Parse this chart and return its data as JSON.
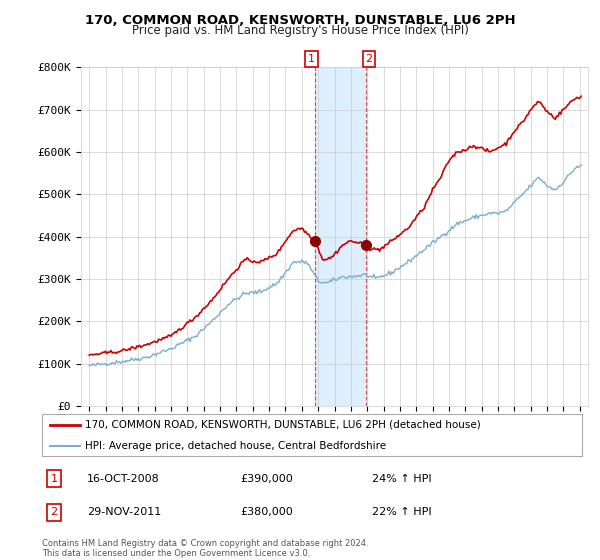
{
  "title": "170, COMMON ROAD, KENSWORTH, DUNSTABLE, LU6 2PH",
  "subtitle": "Price paid vs. HM Land Registry's House Price Index (HPI)",
  "legend_line1": "170, COMMON ROAD, KENSWORTH, DUNSTABLE, LU6 2PH (detached house)",
  "legend_line2": "HPI: Average price, detached house, Central Bedfordshire",
  "annotation1_date": "16-OCT-2008",
  "annotation1_price": "£390,000",
  "annotation1_hpi": "24% ↑ HPI",
  "annotation1_year": 2008.8,
  "annotation1_value": 390000,
  "annotation2_date": "29-NOV-2011",
  "annotation2_price": "£380,000",
  "annotation2_hpi": "22% ↑ HPI",
  "annotation2_year": 2011.9,
  "annotation2_value": 380000,
  "footer": "Contains HM Land Registry data © Crown copyright and database right 2024.\nThis data is licensed under the Open Government Licence v3.0.",
  "red_color": "#cc0000",
  "blue_color": "#7aadcf",
  "background_color": "#ffffff",
  "grid_color": "#cccccc",
  "highlight_color": "#ddeeff",
  "ylim_min": 0,
  "ylim_max": 800000,
  "xlim_min": 1994.5,
  "xlim_max": 2025.5
}
